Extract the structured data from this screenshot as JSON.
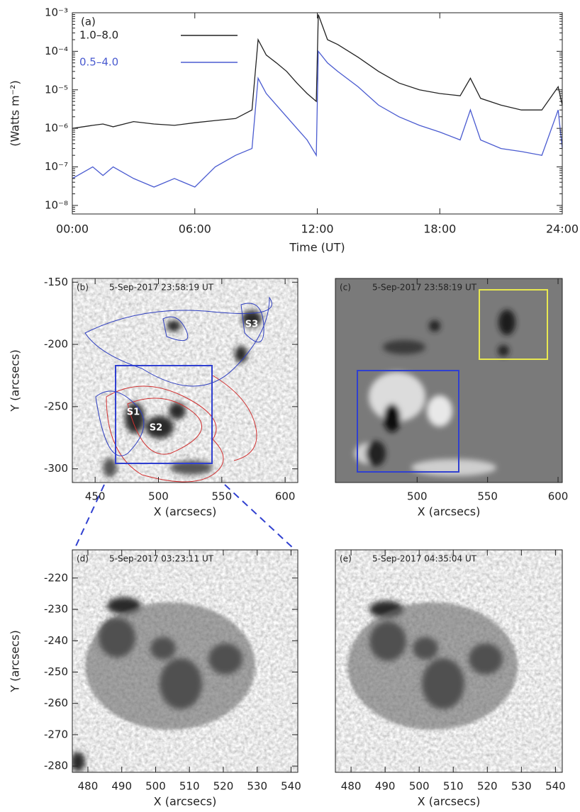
{
  "chart_data": [
    {
      "type": "line",
      "panel_label": "(a)",
      "y_label": "(Watts m⁻²)",
      "x_label": "Time (UT)",
      "log_y": true,
      "x": [
        0,
        1,
        1.5,
        2,
        3,
        4,
        5,
        6,
        7,
        8,
        8.8,
        9.1,
        9.5,
        10,
        10.5,
        11,
        11.5,
        11.95,
        12.05,
        12.5,
        13,
        14,
        15,
        16,
        17,
        18,
        19,
        19.5,
        20,
        21,
        22,
        23,
        23.8,
        24
      ],
      "series": [
        {
          "name": "1.0–8.0",
          "color": "#222222",
          "values": [
            1e-06,
            1.2e-06,
            1.3e-06,
            1.1e-06,
            1.5e-06,
            1.3e-06,
            1.2e-06,
            1.4e-06,
            1.6e-06,
            1.8e-06,
            3e-06,
            0.0002,
            8e-05,
            5e-05,
            3e-05,
            1.5e-05,
            8e-06,
            5e-06,
            0.0009,
            0.0002,
            0.00015,
            7e-05,
            3e-05,
            1.5e-05,
            1e-05,
            8e-06,
            7e-06,
            2e-05,
            6e-06,
            4e-06,
            3e-06,
            3e-06,
            1.2e-05,
            4e-06
          ]
        },
        {
          "name": "0.5–4.0",
          "color": "#4a5bd0",
          "values": [
            5e-08,
            1e-07,
            6e-08,
            1e-07,
            5e-08,
            3e-08,
            5e-08,
            3e-08,
            1e-07,
            2e-07,
            3e-07,
            2e-05,
            8e-06,
            4e-06,
            2e-06,
            1e-06,
            5e-07,
            2e-07,
            0.0001,
            5e-05,
            3e-05,
            1.2e-05,
            4e-06,
            2e-06,
            1.2e-06,
            8e-07,
            5e-07,
            3e-06,
            5e-07,
            3e-07,
            2.5e-07,
            2e-07,
            3e-06,
            3e-07
          ]
        }
      ],
      "xlim": [
        0,
        24
      ],
      "xticks": [
        {
          "value": 0,
          "label": "00:00"
        },
        {
          "value": 6,
          "label": "06:00"
        },
        {
          "value": 12,
          "label": "12:00"
        },
        {
          "value": 18,
          "label": "18:00"
        },
        {
          "value": 24,
          "label": "24:00"
        }
      ],
      "ylim": [
        6e-09,
        0.001
      ],
      "yticks": [
        {
          "value": 1e-08,
          "label": "10⁻⁸"
        },
        {
          "value": 1e-07,
          "label": "10⁻⁷"
        },
        {
          "value": 1e-06,
          "label": "10⁻⁶"
        },
        {
          "value": 1e-05,
          "label": "10⁻⁵"
        },
        {
          "value": 0.0001,
          "label": "10⁻⁴"
        },
        {
          "value": 0.001,
          "label": "10⁻³"
        }
      ]
    },
    {
      "type": "image",
      "panel_label": "(b)",
      "timestamp": "5-Sep-2017 23:58:19 UT",
      "x_label": "X (arcsecs)",
      "y_label": "Y (arcsecs)",
      "xlim": [
        432,
        610
      ],
      "ylim": [
        -311,
        -147
      ],
      "xticks": [
        450,
        500,
        550,
        600
      ],
      "yticks": [
        -300,
        -250,
        -200,
        -150
      ],
      "region_labels": [
        "S1",
        "S2",
        "S3"
      ]
    },
    {
      "type": "image",
      "panel_label": "(c)",
      "timestamp": "5-Sep-2017 23:58:19 UT",
      "x_label": "X (arcsecs)",
      "xlim": [
        442,
        603
      ],
      "ylim": [
        -311,
        -147
      ],
      "xticks": [
        500,
        550,
        600
      ]
    },
    {
      "type": "image",
      "panel_label": "(d)",
      "timestamp": "5-Sep-2017 03:23:11 UT",
      "x_label": "X (arcsecs)",
      "y_label": "Y (arcsecs)",
      "xlim": [
        475.4,
        542
      ],
      "ylim": [
        -282,
        -211
      ],
      "xticks": [
        480,
        490,
        500,
        510,
        520,
        530,
        540
      ],
      "yticks": [
        -280,
        -270,
        -260,
        -250,
        -240,
        -230,
        -220
      ]
    },
    {
      "type": "image",
      "panel_label": "(e)",
      "timestamp": "5-Sep-2017 04:35:04 UT",
      "x_label": "X (arcsecs)",
      "xlim": [
        475.4,
        542
      ],
      "ylim": [
        -282,
        -211
      ],
      "xticks": [
        480,
        490,
        500,
        510,
        520,
        530,
        540
      ]
    }
  ]
}
